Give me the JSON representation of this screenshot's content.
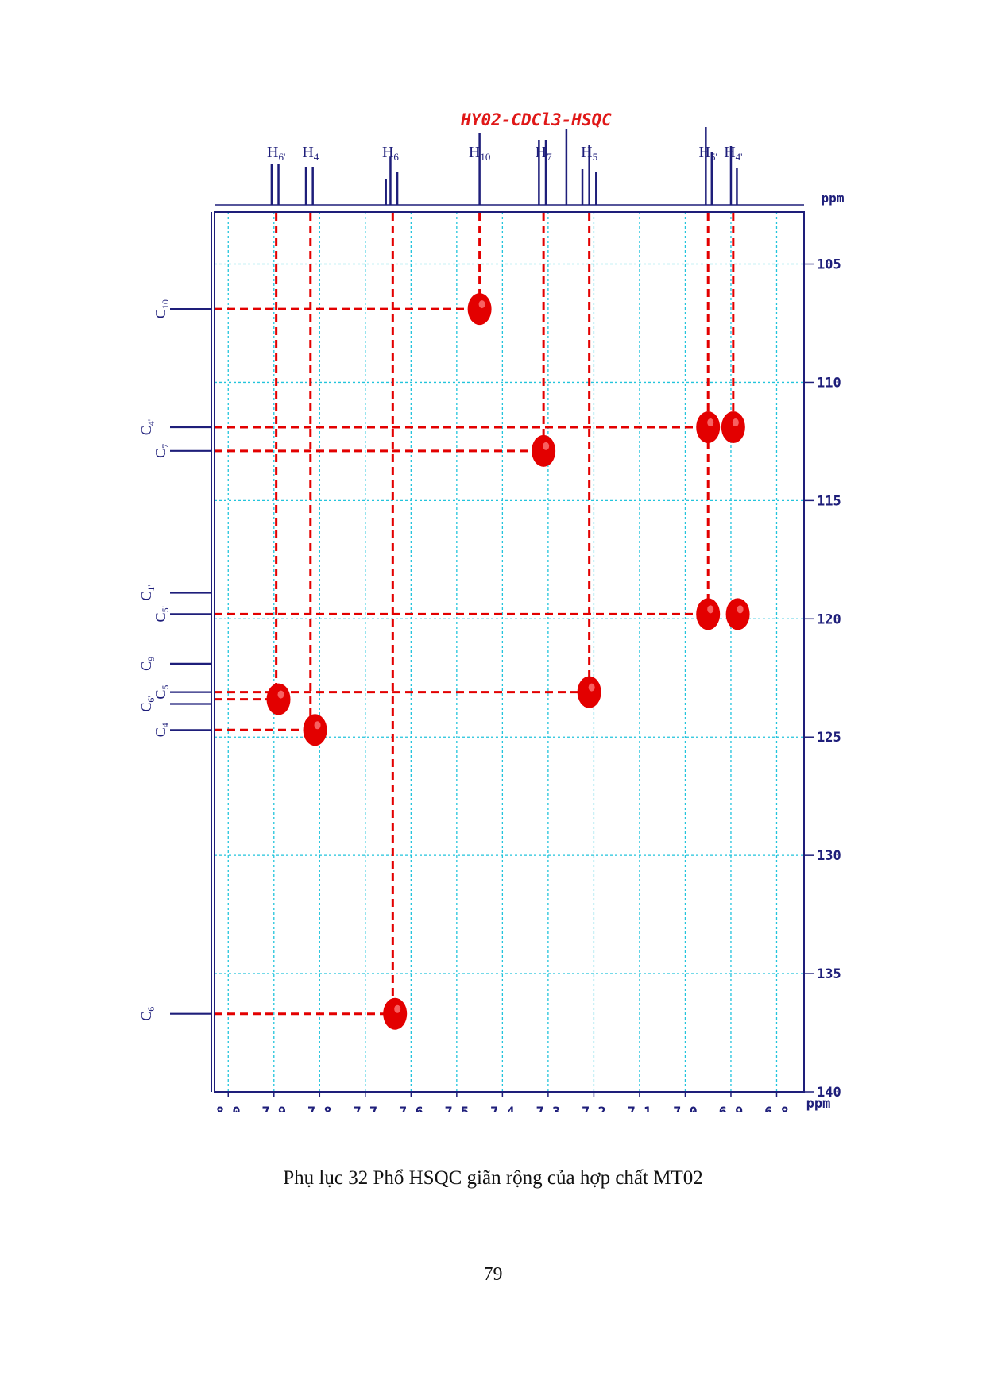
{
  "chart_data": {
    "type": "scatter",
    "title": "HY02-CDCl3-HSQC",
    "xlabel": "ppm",
    "ylabel": "ppm",
    "xlim": [
      8.03,
      6.74
    ],
    "ylim": [
      102.8,
      140
    ],
    "x_ticks": [
      "8.0",
      "7.9",
      "7.8",
      "7.7",
      "7.6",
      "7.5",
      "7.4",
      "7.3",
      "7.2",
      "7.1",
      "7.0",
      "6.9",
      "6.8"
    ],
    "y_ticks": [
      "105",
      "110",
      "115",
      "120",
      "125",
      "130",
      "135",
      "140"
    ],
    "grid": true,
    "proton_labels": [
      {
        "base": "H",
        "sub": "6'",
        "x": 7.895
      },
      {
        "base": "H",
        "sub": "4",
        "x": 7.82
      },
      {
        "base": "H",
        "sub": "6",
        "x": 7.645
      },
      {
        "base": "H",
        "sub": "10",
        "x": 7.45
      },
      {
        "base": "H",
        "sub": "7",
        "x": 7.31
      },
      {
        "base": "H",
        "sub": "5",
        "x": 7.21
      },
      {
        "base": "H",
        "sub": "5'",
        "x": 6.95
      },
      {
        "base": "H",
        "sub": "4'",
        "x": 6.895
      }
    ],
    "proton_peaks": [
      {
        "x": 7.905,
        "h": 0.52
      },
      {
        "x": 7.89,
        "h": 0.52
      },
      {
        "x": 7.83,
        "h": 0.48
      },
      {
        "x": 7.815,
        "h": 0.48
      },
      {
        "x": 7.655,
        "h": 0.32
      },
      {
        "x": 7.645,
        "h": 0.6
      },
      {
        "x": 7.63,
        "h": 0.42
      },
      {
        "x": 7.45,
        "h": 0.9
      },
      {
        "x": 7.32,
        "h": 0.82
      },
      {
        "x": 7.305,
        "h": 0.82
      },
      {
        "x": 7.26,
        "h": 0.95
      },
      {
        "x": 7.225,
        "h": 0.45
      },
      {
        "x": 7.21,
        "h": 0.76
      },
      {
        "x": 7.195,
        "h": 0.42
      },
      {
        "x": 6.955,
        "h": 0.98
      },
      {
        "x": 6.942,
        "h": 0.67
      },
      {
        "x": 6.9,
        "h": 0.74
      },
      {
        "x": 6.887,
        "h": 0.46
      }
    ],
    "carbon_labels": [
      {
        "base": "C",
        "sub": "10",
        "y": 106.9
      },
      {
        "base": "C",
        "sub": "4'",
        "y": 111.9
      },
      {
        "base": "C",
        "sub": "7",
        "y": 112.9
      },
      {
        "base": "C",
        "sub": "1'",
        "y": 118.9
      },
      {
        "base": "C",
        "sub": "5'",
        "y": 119.8
      },
      {
        "base": "C",
        "sub": "9",
        "y": 121.9
      },
      {
        "base": "C",
        "sub": "5",
        "y": 123.1
      },
      {
        "base": "C",
        "sub": "6'",
        "y": 123.6
      },
      {
        "base": "C",
        "sub": "4",
        "y": 124.7
      },
      {
        "base": "C",
        "sub": "6",
        "y": 136.7
      }
    ],
    "correlations": [
      {
        "x": 7.45,
        "y": 106.9
      },
      {
        "x": 6.895,
        "y": 111.9
      },
      {
        "x": 6.95,
        "y": 111.9
      },
      {
        "x": 7.31,
        "y": 112.9
      },
      {
        "x": 6.95,
        "y": 119.8
      },
      {
        "x": 6.885,
        "y": 119.8
      },
      {
        "x": 7.89,
        "y": 123.4
      },
      {
        "x": 7.81,
        "y": 124.7
      },
      {
        "x": 7.21,
        "y": 123.1
      },
      {
        "x": 7.635,
        "y": 136.7
      }
    ],
    "guides": [
      {
        "x": 7.895,
        "y": 123.4
      },
      {
        "x": 7.82,
        "y": 124.7
      },
      {
        "x": 7.64,
        "y": 136.7
      },
      {
        "x": 7.45,
        "y": 106.9
      },
      {
        "x": 7.31,
        "y": 112.9
      },
      {
        "x": 7.21,
        "y": 123.1
      },
      {
        "x": 6.95,
        "y": 119.8
      },
      {
        "x": 6.895,
        "y": 111.9
      }
    ],
    "colors": {
      "axis": "#1e1e7a",
      "grid": "#22c4dc",
      "peak": "#e30000",
      "title": "#e01818"
    }
  },
  "caption": "Phụ lục 32 Phổ HSQC giãn rộng của hợp chất MT02",
  "page_number": "79"
}
